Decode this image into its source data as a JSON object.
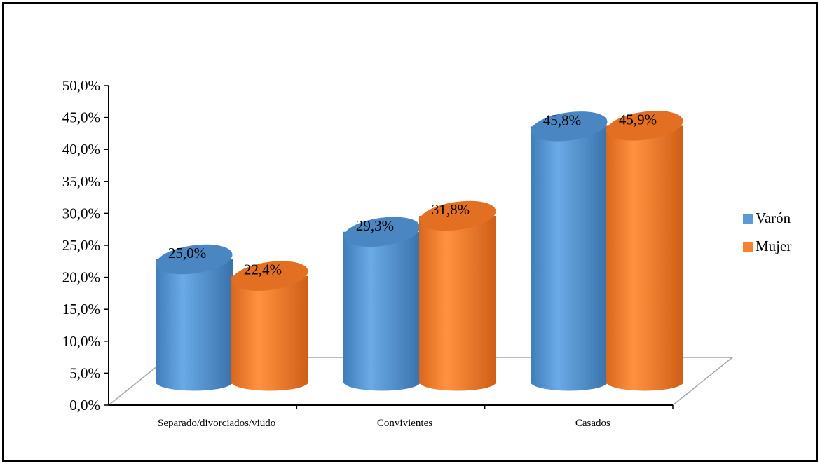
{
  "chart_data": {
    "type": "bar",
    "style": "3d-cylinder",
    "categories": [
      "Separado/divorciados/viudo",
      "Convivientes",
      "Casados"
    ],
    "series": [
      {
        "name": "Varón",
        "values": [
          25.0,
          29.3,
          45.8
        ],
        "labels": [
          "25,0%",
          "29,3%",
          "45,8%"
        ],
        "color": "#5b9bd5"
      },
      {
        "name": "Mujer",
        "values": [
          22.4,
          31.8,
          45.9
        ],
        "labels": [
          "22,4%",
          "31,8%",
          "45,9%"
        ],
        "color": "#f58232"
      }
    ],
    "ylim": [
      0,
      50
    ],
    "yticks": [
      0,
      5,
      10,
      15,
      20,
      25,
      30,
      35,
      40,
      45,
      50
    ],
    "ytick_labels": [
      "0,0%",
      "5,0%",
      "10,0%",
      "15,0%",
      "20,0%",
      "25,0%",
      "30,0%",
      "35,0%",
      "40,0%",
      "45,0%",
      "50,0%"
    ],
    "legend_position": "right",
    "grid": false
  }
}
